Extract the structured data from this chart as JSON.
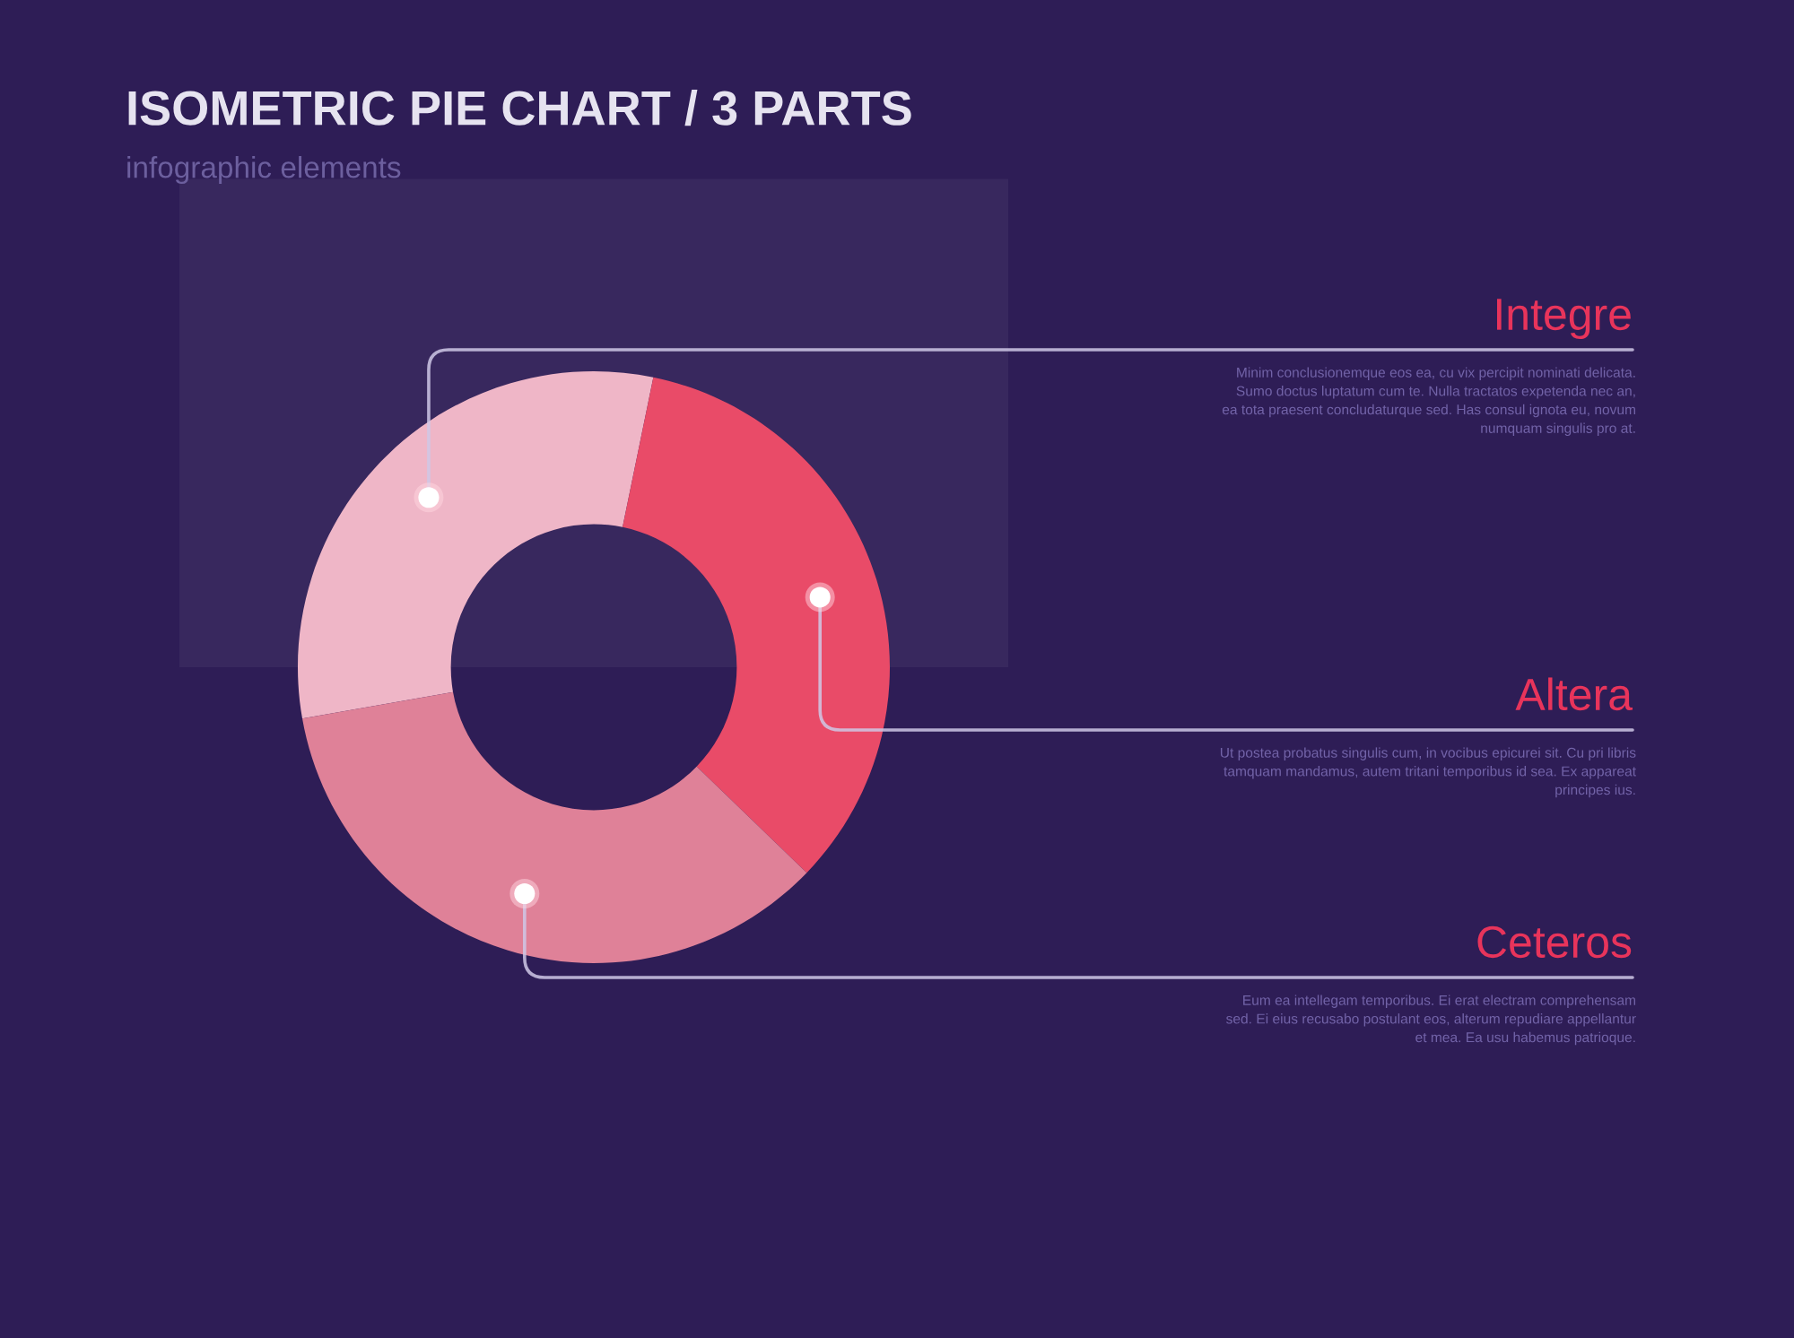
{
  "chart_data": {
    "type": "donut",
    "title": "ISOMETRIC PIE CHART / 3 PARTS",
    "subtitle": "infographic elements",
    "categories": [
      "Integre",
      "Altera",
      "Ceteros"
    ],
    "values": [
      31,
      34,
      35
    ],
    "colors": [
      "#efb6c7",
      "#e94b68",
      "#df8198"
    ],
    "annotations": [
      "Minim conclusionemque eos ea, cu vix percipit nominati delicata.\nSumo doctus luptatum cum te. Nulla tractatos expetenda nec an,\nea tota praesent concludaturque sed. Has consul ignota eu, novum\nnumquam singulis pro at.",
      "Ut postea probatus singulis cum, in vocibus epicurei sit. Cu pri libris\ntamquam mandamus, autem tritani temporibus id sea. Ex appareat\nprincipes ius.",
      "Eum ea intellegam temporibus. Ei erat electram comprehensam\nsed. Ei eius recusabo postulant eos, alterum repudiare appellantur\net mea. Ea usu habemus patrioque."
    ]
  }
}
